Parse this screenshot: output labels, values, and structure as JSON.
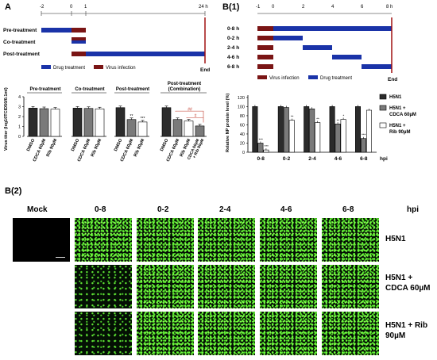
{
  "panel_a": {
    "label": "A",
    "timeline": {
      "ticks": [
        "-2",
        "0",
        "1",
        "24 h"
      ],
      "rows": [
        "Pre-treatment",
        "Co-treatment",
        "Post-treatment"
      ],
      "legend_drug": "Drug treatment",
      "legend_virus": "Virus infection",
      "end_label": "End"
    },
    "chart_data": {
      "type": "bar",
      "ylabel": "Virus titer (log10TCID50/0.1ml)",
      "ylim": [
        0,
        4
      ],
      "yticks": [
        "0",
        "1",
        "2",
        "3",
        "4"
      ],
      "groups": [
        {
          "title": "Pre-treatment",
          "categories": [
            "DMSO",
            "CDCA 60µM",
            "Rib 90µM"
          ],
          "values": [
            2.85,
            2.8,
            2.75
          ],
          "sig": [
            "",
            "",
            ""
          ]
        },
        {
          "title": "Co-treatment",
          "categories": [
            "DMSO",
            "CDCA 60µM",
            "Rib 90µM"
          ],
          "values": [
            2.85,
            2.82,
            2.78
          ],
          "sig": [
            "",
            "",
            ""
          ]
        },
        {
          "title": "Post-treatment",
          "categories": [
            "DMSO",
            "CDCA 60µM",
            "Rib 90µM"
          ],
          "values": [
            2.9,
            1.7,
            1.45
          ],
          "sig": [
            "",
            "**",
            "***"
          ]
        },
        {
          "title": "Post-treatment (Combination)",
          "categories": [
            "DMSO",
            "CDCA 60µM",
            "Rib 90µM",
            "CDCA 60µM + Rib 90µM"
          ],
          "values": [
            2.9,
            1.7,
            1.55,
            1.05
          ],
          "sig": [
            "",
            "",
            "",
            ""
          ]
        }
      ],
      "annotations": [
        "##",
        "#"
      ]
    }
  },
  "panel_b1": {
    "label": "B(1)",
    "timeline": {
      "ticks": [
        "-1",
        "0",
        "2",
        "4",
        "6",
        "8 h"
      ],
      "rows": [
        "0-8 h",
        "0-2 h",
        "2-4 h",
        "4-6 h",
        "6-8 h"
      ],
      "legend_virus": "Virus infection",
      "legend_drug": "Drug treatment",
      "end_label": "End"
    },
    "chart_data": {
      "type": "bar",
      "ylabel": "Relative NP protein level (%)",
      "xlabel": "hpi",
      "ylim": [
        0,
        125
      ],
      "yticks": [
        "0",
        "20",
        "40",
        "60",
        "80",
        "100",
        "120"
      ],
      "categories": [
        "0-8",
        "0-2",
        "2-4",
        "4-6",
        "6-8"
      ],
      "series": [
        {
          "name": "H5N1",
          "color": "#2b2b2b",
          "values": [
            100,
            100,
            100,
            100,
            100
          ],
          "sig": [
            "",
            "",
            "",
            "",
            ""
          ]
        },
        {
          "name": "H5N1 + CDCA 60µM",
          "color": "#7a7a7a",
          "values": [
            20,
            98,
            95,
            62,
            30
          ],
          "sig": [
            "***",
            "",
            "",
            "**",
            "***"
          ]
        },
        {
          "name": "H5N1 + Rib 90µM",
          "color": "#ffffff",
          "values": [
            5,
            70,
            65,
            72,
            92
          ],
          "sig": [
            "***",
            "**",
            "**",
            "*",
            ""
          ]
        }
      ]
    }
  },
  "panel_b2": {
    "label": "B(2)",
    "columns": [
      "Mock",
      "0-8",
      "0-2",
      "2-4",
      "4-6",
      "6-8"
    ],
    "hpi": "hpi",
    "rows": [
      "H5N1",
      "H5N1 + CDCA 60µM",
      "H5N1 + Rib 90µM"
    ]
  }
}
